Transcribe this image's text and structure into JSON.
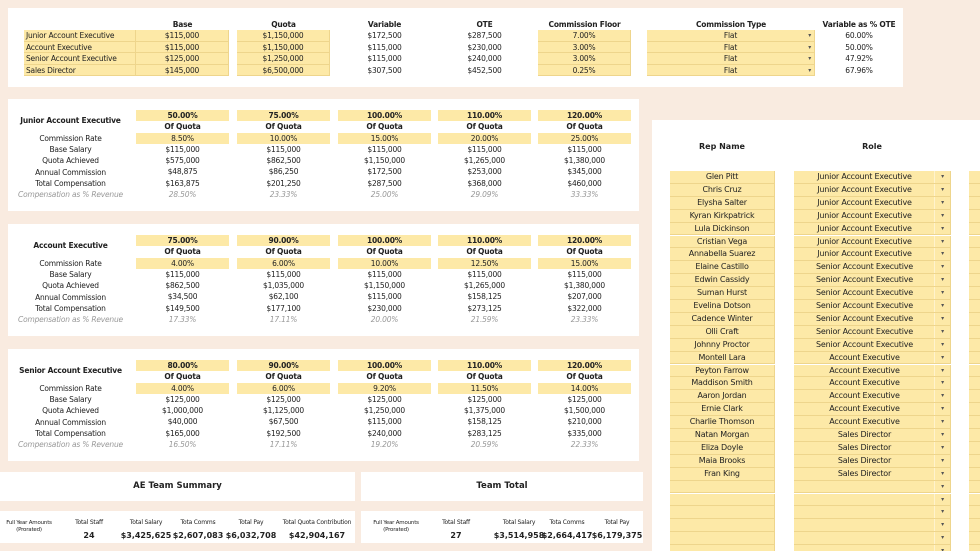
{
  "top_table": {
    "headers": {
      "base": "Base",
      "quota": "Quota",
      "variable": "Variable",
      "ote": "OTE",
      "commission_floor": "Commission Floor",
      "commission_type": "Commission Type",
      "variable_pct_ote": "Variable as % OTE"
    },
    "rows": [
      {
        "role": "Junior Account Executive",
        "base": "$115,000",
        "quota": "$1,150,000",
        "variable": "$172,500",
        "ote": "$287,500",
        "floor": "7.00%",
        "type": "Flat",
        "var_pct": "60.00%"
      },
      {
        "role": "Account Executive",
        "base": "$115,000",
        "quota": "$1,150,000",
        "variable": "$115,000",
        "ote": "$230,000",
        "floor": "3.00%",
        "type": "Flat",
        "var_pct": "50.00%"
      },
      {
        "role": "Senior Account Executive",
        "base": "$125,000",
        "quota": "$1,250,000",
        "variable": "$115,000",
        "ote": "$240,000",
        "floor": "3.00%",
        "type": "Flat",
        "var_pct": "47.92%"
      },
      {
        "role": "Sales Director",
        "base": "$145,000",
        "quota": "$6,500,000",
        "variable": "$307,500",
        "ote": "$452,500",
        "floor": "0.25%",
        "type": "Flat",
        "var_pct": "67.96%"
      }
    ],
    "dropdown_icon": "▾"
  },
  "row_labels": {
    "of_quota": "Of Quota",
    "commission_rate": "Commission Rate",
    "base_salary": "Base Salary",
    "quota_achieved": "Quota Achieved",
    "annual_commission": "Annual Commission",
    "total_compensation": "Total Compensation",
    "comp_pct_revenue": "Compensation as % Revenue"
  },
  "tiers": [
    {
      "title": "Junior Account Executive",
      "columns": [
        {
          "attain": "50.00%",
          "rate": "8.50%",
          "base": "$115,000",
          "quota": "$575,000",
          "comm": "$48,875",
          "total": "$163,875",
          "pct": "28.50%"
        },
        {
          "attain": "75.00%",
          "rate": "10.00%",
          "base": "$115,000",
          "quota": "$862,500",
          "comm": "$86,250",
          "total": "$201,250",
          "pct": "23.33%"
        },
        {
          "attain": "100.00%",
          "rate": "15.00%",
          "base": "$115,000",
          "quota": "$1,150,000",
          "comm": "$172,500",
          "total": "$287,500",
          "pct": "25.00%"
        },
        {
          "attain": "110.00%",
          "rate": "20.00%",
          "base": "$115,000",
          "quota": "$1,265,000",
          "comm": "$253,000",
          "total": "$368,000",
          "pct": "29.09%"
        },
        {
          "attain": "120.00%",
          "rate": "25.00%",
          "base": "$115,000",
          "quota": "$1,380,000",
          "comm": "$345,000",
          "total": "$460,000",
          "pct": "33.33%"
        }
      ]
    },
    {
      "title": "Account Executive",
      "columns": [
        {
          "attain": "75.00%",
          "rate": "4.00%",
          "base": "$115,000",
          "quota": "$862,500",
          "comm": "$34,500",
          "total": "$149,500",
          "pct": "17.33%"
        },
        {
          "attain": "90.00%",
          "rate": "6.00%",
          "base": "$115,000",
          "quota": "$1,035,000",
          "comm": "$62,100",
          "total": "$177,100",
          "pct": "17.11%"
        },
        {
          "attain": "100.00%",
          "rate": "10.00%",
          "base": "$115,000",
          "quota": "$1,150,000",
          "comm": "$115,000",
          "total": "$230,000",
          "pct": "20.00%"
        },
        {
          "attain": "110.00%",
          "rate": "12.50%",
          "base": "$115,000",
          "quota": "$1,265,000",
          "comm": "$158,125",
          "total": "$273,125",
          "pct": "21.59%"
        },
        {
          "attain": "120.00%",
          "rate": "15.00%",
          "base": "$115,000",
          "quota": "$1,380,000",
          "comm": "$207,000",
          "total": "$322,000",
          "pct": "23.33%"
        }
      ]
    },
    {
      "title": "Senior Account Executive",
      "columns": [
        {
          "attain": "80.00%",
          "rate": "4.00%",
          "base": "$125,000",
          "quota": "$1,000,000",
          "comm": "$40,000",
          "total": "$165,000",
          "pct": "16.50%"
        },
        {
          "attain": "90.00%",
          "rate": "6.00%",
          "base": "$125,000",
          "quota": "$1,125,000",
          "comm": "$67,500",
          "total": "$192,500",
          "pct": "17.11%"
        },
        {
          "attain": "100.00%",
          "rate": "9.20%",
          "base": "$125,000",
          "quota": "$1,250,000",
          "comm": "$115,000",
          "total": "$240,000",
          "pct": "19.20%"
        },
        {
          "attain": "110.00%",
          "rate": "11.50%",
          "base": "$125,000",
          "quota": "$1,375,000",
          "comm": "$158,125",
          "total": "$283,125",
          "pct": "20.59%"
        },
        {
          "attain": "120.00%",
          "rate": "14.00%",
          "base": "$125,000",
          "quota": "$1,500,000",
          "comm": "$210,000",
          "total": "$335,000",
          "pct": "22.33%"
        }
      ]
    }
  ],
  "ae_summary": {
    "title": "AE Team Summary",
    "first_label": "Full Year Amounts (Prorated)",
    "cols": [
      {
        "label": "Total Staff",
        "value": "24"
      },
      {
        "label": "Total Salary",
        "value": "$3,425,625"
      },
      {
        "label": "Tota Comms",
        "value": "$2,607,083"
      },
      {
        "label": "Total Pay",
        "value": "$6,032,708"
      },
      {
        "label": "Total Quota Contribution",
        "value": "$42,904,167"
      }
    ]
  },
  "team_total": {
    "title": "Team Total",
    "first_label": "Full Year Amounts (Prorated)",
    "cols": [
      {
        "label": "Total Staff",
        "value": "27"
      },
      {
        "label": "Total Salary",
        "value": "$3,514,958"
      },
      {
        "label": "Tota Comms",
        "value": "$2,664,417"
      },
      {
        "label": "Total Pay",
        "value": "$6,179,375"
      }
    ]
  },
  "roster": {
    "headers": {
      "rep_name": "Rep Name",
      "role": "Role"
    },
    "reps": [
      {
        "name": "Glen Pitt",
        "role": "Junior Account Executive"
      },
      {
        "name": "Chris Cruz",
        "role": "Junior Account Executive"
      },
      {
        "name": "Elysha Salter",
        "role": "Junior Account Executive"
      },
      {
        "name": "Kyran Kirkpatrick",
        "role": "Junior Account Executive"
      },
      {
        "name": "Lula Dickinson",
        "role": "Junior Account Executive"
      },
      {
        "name": "Cristian Vega",
        "role": "Junior Account Executive"
      },
      {
        "name": "Annabella Suarez",
        "role": "Junior Account Executive"
      },
      {
        "name": "Elaine Castillo",
        "role": "Senior Account Executive"
      },
      {
        "name": "Edwin Cassidy",
        "role": "Senior Account Executive"
      },
      {
        "name": "Suman Hurst",
        "role": "Senior Account Executive"
      },
      {
        "name": "Evelina Dotson",
        "role": "Senior Account Executive"
      },
      {
        "name": "Cadence Winter",
        "role": "Senior Account Executive"
      },
      {
        "name": "Olli Craft",
        "role": "Senior Account Executive"
      },
      {
        "name": "Johnny Proctor",
        "role": "Senior Account Executive"
      },
      {
        "name": "Montell Lara",
        "role": "Account Executive"
      },
      {
        "name": "Peyton Farrow",
        "role": "Account Executive"
      },
      {
        "name": "Maddison Smith",
        "role": "Account Executive"
      },
      {
        "name": "Aaron Jordan",
        "role": "Account Executive"
      },
      {
        "name": "Ernie Clark",
        "role": "Account Executive"
      },
      {
        "name": "Charlie Thomson",
        "role": "Account Executive"
      },
      {
        "name": "Natan Morgan",
        "role": "Sales Director"
      },
      {
        "name": "Eliza Doyle",
        "role": "Sales Director"
      },
      {
        "name": "Maia Brooks",
        "role": "Sales Director"
      },
      {
        "name": "Fran King",
        "role": "Sales Director"
      },
      {
        "name": "",
        "role": ""
      },
      {
        "name": "",
        "role": ""
      },
      {
        "name": "",
        "role": ""
      },
      {
        "name": "",
        "role": ""
      },
      {
        "name": "",
        "role": ""
      },
      {
        "name": "",
        "role": ""
      }
    ]
  },
  "colors": {
    "background": "#f9ebe0",
    "panel": "#ffffff",
    "input_cell": "#fde9a7",
    "input_border": "#eed58c",
    "muted_text": "#999999"
  }
}
